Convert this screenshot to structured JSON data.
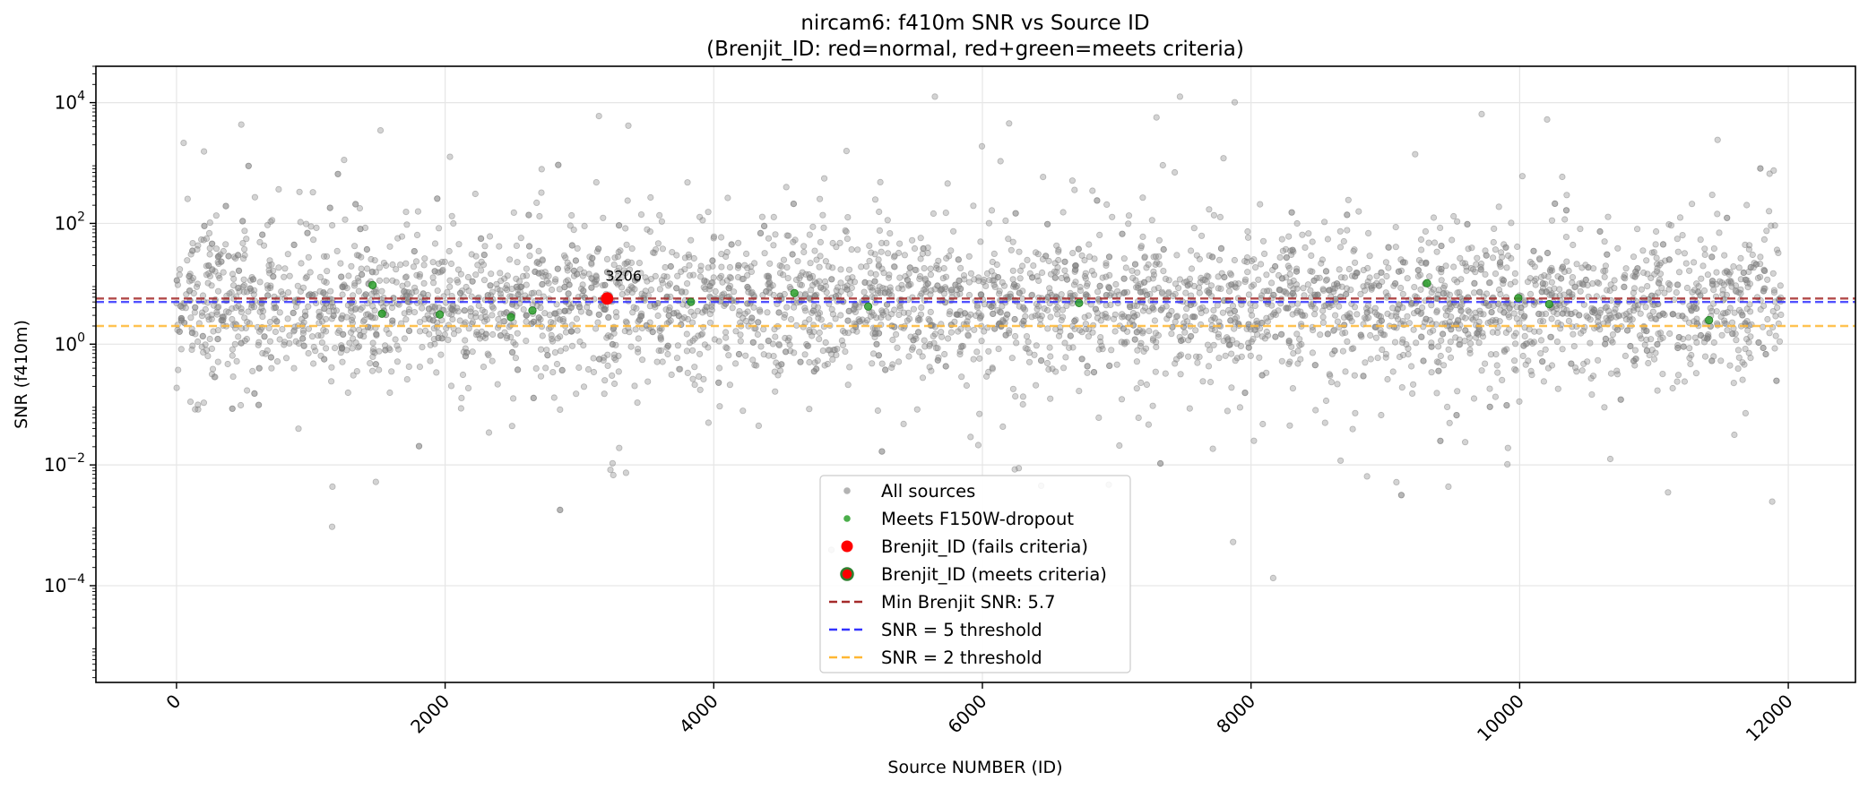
{
  "chart_data": {
    "type": "scatter",
    "title": "nircam6: f410m SNR vs Source ID",
    "subtitle": "(Brenjit_ID: red=normal, red+green=meets criteria)",
    "xlabel": "Source NUMBER (ID)",
    "ylabel": "SNR (f410m)",
    "xlim": [
      -600,
      12500
    ],
    "ylim": [
      2.5e-06,
      40000
    ],
    "yscale": "log",
    "grid": true,
    "legend_position": "lower-center",
    "x_ticks": [
      0,
      2000,
      4000,
      6000,
      8000,
      10000,
      12000
    ],
    "x_tick_labels": [
      "0",
      "2000",
      "4000",
      "6000",
      "8000",
      "10000",
      "12000"
    ],
    "y_ticks": [
      0.0001,
      0.01,
      1,
      100,
      10000
    ],
    "y_tick_labels": [
      {
        "base": "10",
        "exp": "−4"
      },
      {
        "base": "10",
        "exp": "−2"
      },
      {
        "base": "10",
        "exp": "0"
      },
      {
        "base": "10",
        "exp": "2"
      },
      {
        "base": "10",
        "exp": "4"
      }
    ],
    "background_points": {
      "name": "All sources",
      "color": "#808080",
      "x_range": [
        0,
        11950
      ],
      "count_visible": "approx 12000",
      "typical_y": 4.5
    },
    "series": [
      {
        "name": "Meets F150W-dropout",
        "color": "#2ca02c",
        "points": [
          {
            "x": 1460,
            "y": 9.5
          },
          {
            "x": 1530,
            "y": 3.2
          },
          {
            "x": 1960,
            "y": 3.1
          },
          {
            "x": 2490,
            "y": 2.8
          },
          {
            "x": 2650,
            "y": 3.6
          },
          {
            "x": 3830,
            "y": 5.0
          },
          {
            "x": 4600,
            "y": 7.0
          },
          {
            "x": 5150,
            "y": 4.2
          },
          {
            "x": 6720,
            "y": 4.8
          },
          {
            "x": 9310,
            "y": 10.2
          },
          {
            "x": 9990,
            "y": 5.8
          },
          {
            "x": 10220,
            "y": 4.6
          },
          {
            "x": 11410,
            "y": 2.5
          }
        ]
      },
      {
        "name": "Brenjit_ID (fails criteria)",
        "color": "#ff0000",
        "points": [
          {
            "x": 3206,
            "y": 5.7,
            "label": "3206"
          }
        ]
      }
    ],
    "reference_lines": [
      {
        "name": "Min Brenjit SNR: 5.7",
        "y": 5.7,
        "color": "#a52a2a"
      },
      {
        "name": "SNR = 5 threshold",
        "y": 5,
        "color": "#3333ff"
      },
      {
        "name": "SNR = 2 threshold",
        "y": 2,
        "color": "#ffb733"
      }
    ],
    "legend": [
      {
        "label": "All sources",
        "marker": "circle-small",
        "color": "#a6a6a6"
      },
      {
        "label": "Meets F150W-dropout",
        "marker": "circle-small",
        "color": "#2ca02c"
      },
      {
        "label": "Brenjit_ID (fails criteria)",
        "marker": "circle",
        "color": "#ff0000"
      },
      {
        "label": "Brenjit_ID (meets criteria)",
        "marker": "circle-ring",
        "color": "#ff0000",
        "edge": "#2f7f2f"
      },
      {
        "label": "Min Brenjit SNR: 5.7",
        "marker": "dashed-line",
        "color": "#a52a2a"
      },
      {
        "label": "SNR = 5 threshold",
        "marker": "dashed-line",
        "color": "#3333ff"
      },
      {
        "label": "SNR = 2 threshold",
        "marker": "dashed-line",
        "color": "#ffb733"
      }
    ]
  }
}
